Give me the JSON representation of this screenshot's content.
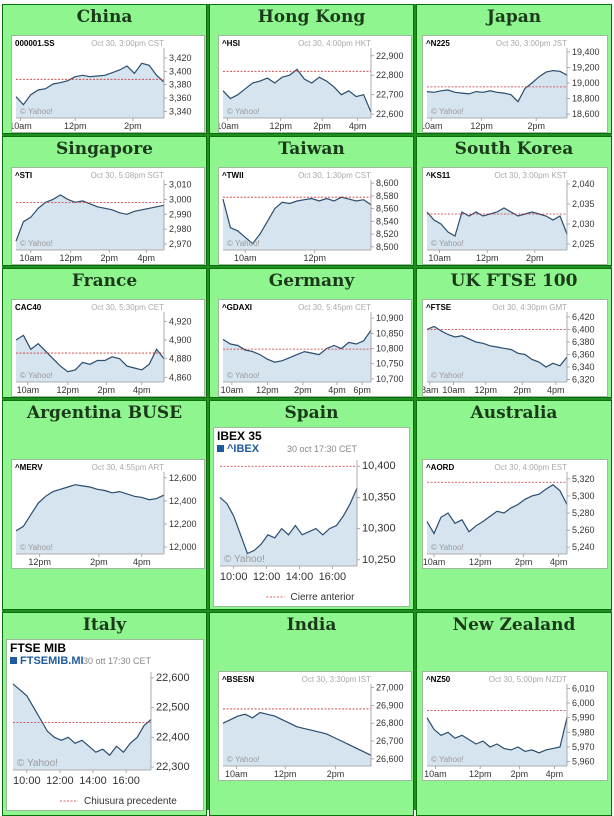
{
  "chart_data": [
    {
      "type": "line",
      "region": "China",
      "symbol": "000001.SS",
      "stamp": "Oct 30, 3:00pm CST",
      "watermark": "© Yahoo!",
      "ylim": [
        3330,
        3435
      ],
      "yticks": [
        3420,
        3400,
        3380,
        3360,
        3340
      ],
      "prev_close": 3388,
      "xticks": [
        {
          "label": "10am",
          "t": 0.03
        },
        {
          "label": "12pm",
          "t": 0.4
        },
        {
          "label": "2pm",
          "t": 0.79
        }
      ],
      "x": [
        0,
        0.05,
        0.1,
        0.15,
        0.2,
        0.25,
        0.3,
        0.35,
        0.4,
        0.45,
        0.5,
        0.55,
        0.6,
        0.65,
        0.7,
        0.75,
        0.8,
        0.85,
        0.9,
        0.95,
        1.0
      ],
      "values": [
        3362,
        3350,
        3365,
        3372,
        3374,
        3381,
        3383,
        3386,
        3392,
        3394,
        3392,
        3393,
        3394,
        3398,
        3402,
        3408,
        3397,
        3412,
        3409,
        3394,
        3384
      ]
    },
    {
      "type": "line",
      "region": "Hong Kong",
      "symbol": "^HSI",
      "stamp": "Oct 30, 4:00pm HKT",
      "watermark": "© Yahoo!",
      "ylim": [
        22580,
        22940
      ],
      "yticks": [
        22900,
        22800,
        22700,
        22600
      ],
      "prev_close": 22820,
      "xticks": [
        {
          "label": "10am",
          "t": 0.03
        },
        {
          "label": "12pm",
          "t": 0.39
        },
        {
          "label": "2pm",
          "t": 0.67
        },
        {
          "label": "4pm",
          "t": 0.91
        }
      ],
      "x": [
        0,
        0.05,
        0.1,
        0.15,
        0.2,
        0.25,
        0.3,
        0.35,
        0.4,
        0.45,
        0.5,
        0.55,
        0.6,
        0.65,
        0.7,
        0.75,
        0.8,
        0.85,
        0.9,
        0.95,
        1.0
      ],
      "values": [
        22720,
        22680,
        22700,
        22730,
        22760,
        22770,
        22785,
        22760,
        22790,
        22800,
        22830,
        22780,
        22760,
        22790,
        22770,
        22740,
        22700,
        22720,
        22690,
        22700,
        22610
      ]
    },
    {
      "type": "line",
      "region": "Japan",
      "symbol": "^N225",
      "stamp": "Oct 30, 3:00pm JST",
      "watermark": "© Yahoo!",
      "ylim": [
        18550,
        19450
      ],
      "yticks": [
        19400,
        19200,
        19000,
        18800,
        18600
      ],
      "prev_close": 18950,
      "xticks": [
        {
          "label": "10am",
          "t": 0.03
        },
        {
          "label": "12pm",
          "t": 0.39
        },
        {
          "label": "2pm",
          "t": 0.78
        }
      ],
      "x": [
        0,
        0.05,
        0.1,
        0.15,
        0.2,
        0.25,
        0.3,
        0.35,
        0.4,
        0.45,
        0.5,
        0.55,
        0.6,
        0.65,
        0.7,
        0.75,
        0.8,
        0.85,
        0.9,
        0.95,
        1.0
      ],
      "values": [
        18890,
        18880,
        18900,
        18910,
        18880,
        18870,
        18860,
        18890,
        18880,
        18900,
        18880,
        18870,
        18850,
        18760,
        18930,
        19000,
        19080,
        19140,
        19160,
        19150,
        19100
      ]
    },
    {
      "type": "line",
      "region": "Singapore",
      "symbol": "^STI",
      "stamp": "Oct 30, 5:08pm SGT",
      "watermark": "© Yahoo!",
      "ylim": [
        2966,
        3013
      ],
      "yticks": [
        3010,
        3000,
        2990,
        2980,
        2970
      ],
      "prev_close": 2998,
      "xticks": [
        {
          "label": "10am",
          "t": 0.1
        },
        {
          "label": "12pm",
          "t": 0.37
        },
        {
          "label": "2pm",
          "t": 0.63
        },
        {
          "label": "4pm",
          "t": 0.88
        }
      ],
      "x": [
        0,
        0.05,
        0.1,
        0.15,
        0.2,
        0.25,
        0.3,
        0.35,
        0.4,
        0.45,
        0.5,
        0.55,
        0.6,
        0.65,
        0.7,
        0.75,
        0.8,
        0.85,
        0.9,
        0.95,
        1.0
      ],
      "values": [
        2972,
        2985,
        2988,
        2994,
        2998,
        3000,
        3003,
        3000,
        2998,
        2999,
        2997,
        2995,
        2994,
        2993,
        2991,
        2990,
        2992,
        2993,
        2994,
        2995,
        2996
      ]
    },
    {
      "type": "line",
      "region": "Taiwan",
      "symbol": "^TWII",
      "stamp": "Oct 30, 1:30pm CST",
      "watermark": "© Yahoo!",
      "ylim": [
        8495,
        8605
      ],
      "yticks": [
        8600,
        8580,
        8560,
        8540,
        8520,
        8500
      ],
      "prev_close": 8578,
      "xticks": [
        {
          "label": "10am",
          "t": 0.15
        },
        {
          "label": "12pm",
          "t": 0.62
        }
      ],
      "x": [
        0,
        0.05,
        0.1,
        0.15,
        0.2,
        0.25,
        0.3,
        0.35,
        0.4,
        0.45,
        0.5,
        0.55,
        0.6,
        0.65,
        0.7,
        0.75,
        0.8,
        0.85,
        0.9,
        0.95,
        1.0
      ],
      "values": [
        8575,
        8530,
        8525,
        8515,
        8505,
        8520,
        8540,
        8560,
        8570,
        8568,
        8572,
        8574,
        8576,
        8572,
        8576,
        8572,
        8578,
        8575,
        8572,
        8574,
        8566
      ]
    },
    {
      "type": "line",
      "region": "South Korea",
      "symbol": "^KS11",
      "stamp": "Oct 30, 3:00pm KST",
      "watermark": "© Yahoo!",
      "ylim": [
        2023.5,
        2041
      ],
      "yticks": [
        2040,
        2035,
        2030,
        2025
      ],
      "prev_close": 2032.5,
      "xticks": [
        {
          "label": "10am",
          "t": 0.09
        },
        {
          "label": "12pm",
          "t": 0.43
        },
        {
          "label": "2pm",
          "t": 0.77
        }
      ],
      "x": [
        0,
        0.05,
        0.1,
        0.15,
        0.2,
        0.25,
        0.3,
        0.35,
        0.4,
        0.45,
        0.5,
        0.55,
        0.6,
        0.65,
        0.7,
        0.75,
        0.8,
        0.85,
        0.9,
        0.95,
        1.0
      ],
      "values": [
        2033,
        2031,
        2030,
        2028,
        2027,
        2033,
        2032,
        2033,
        2032,
        2032.5,
        2033,
        2034,
        2033,
        2032,
        2032.5,
        2033,
        2032.5,
        2032,
        2031,
        2032,
        2027.5
      ]
    },
    {
      "type": "line",
      "region": "France",
      "symbol": "CAC40",
      "stamp": "Oct 30, 5:30pm CET",
      "watermark": "© Yahoo!",
      "ylim": [
        4855,
        4930
      ],
      "yticks": [
        4920,
        4900,
        4880,
        4860
      ],
      "prev_close": 4886,
      "xticks": [
        {
          "label": "10am",
          "t": 0.08
        },
        {
          "label": "12pm",
          "t": 0.35
        },
        {
          "label": "2pm",
          "t": 0.61
        },
        {
          "label": "4pm",
          "t": 0.85
        }
      ],
      "x": [
        0,
        0.05,
        0.1,
        0.15,
        0.2,
        0.25,
        0.3,
        0.35,
        0.4,
        0.45,
        0.5,
        0.55,
        0.6,
        0.65,
        0.7,
        0.75,
        0.8,
        0.85,
        0.9,
        0.95,
        1.0
      ],
      "values": [
        4900,
        4905,
        4890,
        4896,
        4888,
        4880,
        4872,
        4866,
        4868,
        4876,
        4874,
        4878,
        4878,
        4882,
        4880,
        4872,
        4870,
        4868,
        4874,
        4890,
        4880
      ]
    },
    {
      "type": "line",
      "region": "Germany",
      "symbol": "^GDAXI",
      "stamp": "Oct 30, 5:45pm CET",
      "watermark": "© Yahoo!",
      "ylim": [
        10690,
        10920
      ],
      "yticks": [
        10900,
        10850,
        10800,
        10750,
        10700
      ],
      "prev_close": 10798,
      "xticks": [
        {
          "label": "10am",
          "t": 0.06
        },
        {
          "label": "12pm",
          "t": 0.3
        },
        {
          "label": "2pm",
          "t": 0.54
        },
        {
          "label": "4pm",
          "t": 0.77
        },
        {
          "label": "6pm",
          "t": 0.94
        }
      ],
      "x": [
        0,
        0.05,
        0.1,
        0.15,
        0.2,
        0.25,
        0.3,
        0.35,
        0.4,
        0.45,
        0.5,
        0.55,
        0.6,
        0.65,
        0.7,
        0.75,
        0.8,
        0.85,
        0.9,
        0.95,
        1.0
      ],
      "values": [
        10830,
        10815,
        10810,
        10795,
        10790,
        10780,
        10765,
        10755,
        10760,
        10770,
        10780,
        10790,
        10785,
        10780,
        10800,
        10810,
        10800,
        10820,
        10815,
        10825,
        10860
      ]
    },
    {
      "type": "line",
      "region": "UK FTSE 100",
      "symbol": "^FTSE",
      "stamp": "Oct 30, 4:30pm GMT",
      "watermark": "© Yahoo!",
      "ylim": [
        6316,
        6428
      ],
      "yticks": [
        6420,
        6400,
        6380,
        6360,
        6340,
        6320
      ],
      "prev_close": 6400,
      "xticks": [
        {
          "label": "8am",
          "t": 0.02
        },
        {
          "label": "10am",
          "t": 0.19
        },
        {
          "label": "12pm",
          "t": 0.42
        },
        {
          "label": "2pm",
          "t": 0.68
        },
        {
          "label": "4pm",
          "t": 0.92
        }
      ],
      "x": [
        0,
        0.05,
        0.1,
        0.15,
        0.2,
        0.25,
        0.3,
        0.35,
        0.4,
        0.45,
        0.5,
        0.55,
        0.6,
        0.65,
        0.7,
        0.75,
        0.8,
        0.85,
        0.9,
        0.95,
        1.0
      ],
      "values": [
        6400,
        6405,
        6398,
        6392,
        6388,
        6390,
        6385,
        6380,
        6378,
        6374,
        6372,
        6370,
        6368,
        6362,
        6360,
        6352,
        6348,
        6340,
        6346,
        6342,
        6356
      ]
    },
    {
      "type": "line",
      "region": "Argentina BUSE",
      "symbol": "^MERV",
      "stamp": "Oct 30, 4:55pm ART",
      "watermark": "© Yahoo!",
      "ylim": [
        11940,
        12650
      ],
      "yticks": [
        12600,
        12400,
        12200,
        12000
      ],
      "prev_close": null,
      "xticks": [
        {
          "label": "12pm",
          "t": 0.16
        },
        {
          "label": "2pm",
          "t": 0.56
        },
        {
          "label": "4pm",
          "t": 0.85
        }
      ],
      "x": [
        0,
        0.05,
        0.1,
        0.15,
        0.2,
        0.25,
        0.3,
        0.35,
        0.4,
        0.45,
        0.5,
        0.55,
        0.6,
        0.65,
        0.7,
        0.75,
        0.8,
        0.85,
        0.9,
        0.95,
        1.0
      ],
      "values": [
        12140,
        12180,
        12280,
        12380,
        12440,
        12480,
        12500,
        12520,
        12540,
        12530,
        12520,
        12500,
        12490,
        12470,
        12480,
        12460,
        12440,
        12430,
        12410,
        12420,
        12450
      ]
    },
    {
      "type": "line",
      "region": "Spain",
      "title": "IBEX 35",
      "symbol": "^IBEX",
      "stamp": "30 oct 17:30 CET",
      "watermark": "© Yahoo!",
      "legend": "Cierre anterior",
      "ylim": [
        10240,
        10410
      ],
      "yticks": [
        10400,
        10350,
        10300,
        10250
      ],
      "prev_close": 10400,
      "xticks": [
        {
          "label": "10:00",
          "t": 0.1
        },
        {
          "label": "12:00",
          "t": 0.34
        },
        {
          "label": "14:00",
          "t": 0.58
        },
        {
          "label": "16:00",
          "t": 0.82
        }
      ],
      "x": [
        0,
        0.05,
        0.1,
        0.15,
        0.2,
        0.25,
        0.3,
        0.35,
        0.4,
        0.45,
        0.5,
        0.55,
        0.6,
        0.65,
        0.7,
        0.75,
        0.8,
        0.85,
        0.9,
        0.95,
        1.0
      ],
      "values": [
        10350,
        10340,
        10320,
        10290,
        10260,
        10265,
        10275,
        10290,
        10285,
        10300,
        10290,
        10305,
        10290,
        10295,
        10300,
        10290,
        10300,
        10305,
        10320,
        10340,
        10365
      ]
    },
    {
      "type": "line",
      "region": "Australia",
      "symbol": "^AORD",
      "stamp": "Oct 30, 4:00pm EST",
      "watermark": "© Yahoo!",
      "ylim": [
        5232,
        5328
      ],
      "yticks": [
        5320,
        5300,
        5280,
        5260,
        5240
      ],
      "prev_close": 5316,
      "xticks": [
        {
          "label": "10am",
          "t": 0.05
        },
        {
          "label": "12pm",
          "t": 0.38
        },
        {
          "label": "2pm",
          "t": 0.69
        },
        {
          "label": "4pm",
          "t": 0.94
        }
      ],
      "x": [
        0,
        0.05,
        0.1,
        0.15,
        0.2,
        0.25,
        0.3,
        0.35,
        0.4,
        0.45,
        0.5,
        0.55,
        0.6,
        0.65,
        0.7,
        0.75,
        0.8,
        0.85,
        0.9,
        0.95,
        1.0
      ],
      "values": [
        5270,
        5256,
        5275,
        5280,
        5268,
        5272,
        5258,
        5265,
        5270,
        5276,
        5282,
        5280,
        5286,
        5290,
        5296,
        5300,
        5302,
        5308,
        5313,
        5306,
        5290
      ]
    },
    {
      "type": "line",
      "region": "Italy",
      "title": "FTSE MIB",
      "symbol": "FTSEMIB.MI",
      "stamp": "30 ott 17:30 CET",
      "watermark": "© Yahoo!",
      "legend": "Chiusura precedente",
      "ylim": [
        22290,
        22620
      ],
      "yticks": [
        22600,
        22500,
        22400,
        22300
      ],
      "prev_close": 22450,
      "xticks": [
        {
          "label": "10:00",
          "t": 0.1
        },
        {
          "label": "12:00",
          "t": 0.34
        },
        {
          "label": "14:00",
          "t": 0.58
        },
        {
          "label": "16:00",
          "t": 0.82
        }
      ],
      "x": [
        0,
        0.05,
        0.1,
        0.15,
        0.2,
        0.25,
        0.3,
        0.35,
        0.4,
        0.45,
        0.5,
        0.55,
        0.6,
        0.65,
        0.7,
        0.75,
        0.8,
        0.85,
        0.9,
        0.95,
        1.0
      ],
      "values": [
        22580,
        22560,
        22540,
        22500,
        22460,
        22420,
        22400,
        22390,
        22400,
        22380,
        22390,
        22370,
        22350,
        22360,
        22340,
        22370,
        22350,
        22380,
        22400,
        22440,
        22460
      ]
    },
    {
      "type": "line",
      "region": "India",
      "symbol": "^BSESN",
      "stamp": "Oct 30, 3:30pm IST",
      "watermark": "© Yahoo!",
      "ylim": [
        26560,
        27020
      ],
      "yticks": [
        27000,
        26900,
        26800,
        26700,
        26600
      ],
      "prev_close": 26880,
      "xticks": [
        {
          "label": "10am",
          "t": 0.09
        },
        {
          "label": "12pm",
          "t": 0.42
        },
        {
          "label": "2pm",
          "t": 0.76
        }
      ],
      "x": [
        0,
        0.05,
        0.1,
        0.15,
        0.2,
        0.25,
        0.3,
        0.35,
        0.4,
        0.45,
        0.5,
        0.55,
        0.6,
        0.65,
        0.7,
        0.75,
        0.8,
        0.85,
        0.9,
        0.95,
        1.0
      ],
      "values": [
        26800,
        26820,
        26840,
        26850,
        26830,
        26860,
        26850,
        26840,
        26820,
        26800,
        26780,
        26770,
        26760,
        26750,
        26740,
        26720,
        26700,
        26680,
        26660,
        26640,
        26620
      ]
    },
    {
      "type": "line",
      "region": "New Zealand",
      "symbol": "^NZ50",
      "stamp": "Oct 30, 5:00pm NZDT",
      "watermark": "© Yahoo!",
      "ylim": [
        5957,
        6013
      ],
      "yticks": [
        6010,
        6000,
        5990,
        5980,
        5970,
        5960
      ],
      "prev_close": 5995,
      "xticks": [
        {
          "label": "10am",
          "t": 0.06
        },
        {
          "label": "12pm",
          "t": 0.38
        },
        {
          "label": "2pm",
          "t": 0.66
        },
        {
          "label": "4pm",
          "t": 0.91
        }
      ],
      "x": [
        0,
        0.05,
        0.1,
        0.15,
        0.2,
        0.25,
        0.3,
        0.35,
        0.4,
        0.45,
        0.5,
        0.55,
        0.6,
        0.65,
        0.7,
        0.75,
        0.8,
        0.85,
        0.9,
        0.95,
        1.0
      ],
      "values": [
        5990,
        5982,
        5978,
        5980,
        5976,
        5978,
        5975,
        5972,
        5974,
        5970,
        5972,
        5969,
        5968,
        5970,
        5967,
        5968,
        5966,
        5968,
        5969,
        5970,
        5990
      ]
    }
  ]
}
